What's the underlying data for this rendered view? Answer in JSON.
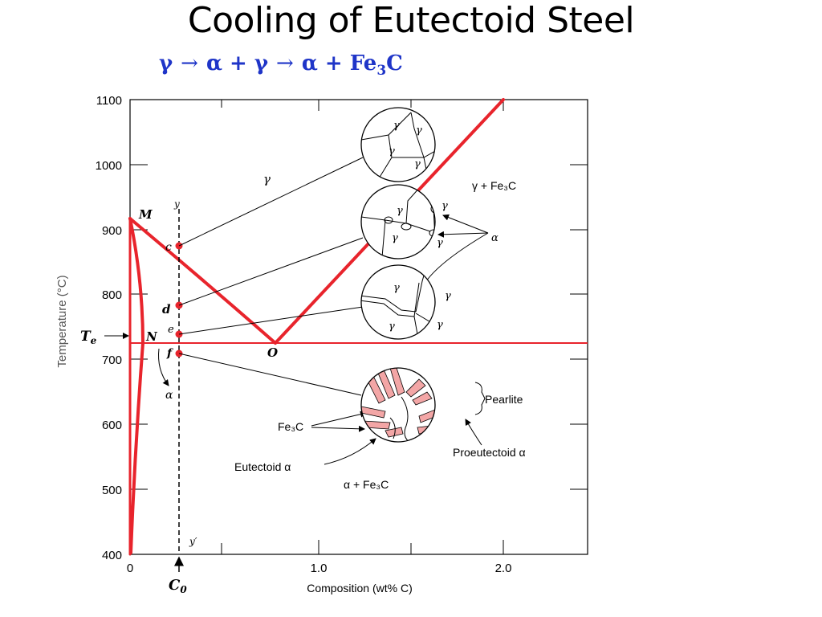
{
  "slide": {
    "title": "Cooling of Eutectoid Steel",
    "reaction": {
      "s1": "γ",
      "arrow1": "→",
      "s2": "α + γ",
      "arrow2": "→",
      "s3_prefix": "α + Fe",
      "s3_sub": "3",
      "s3_suffix": "C"
    },
    "accent_color": "#1f35c8"
  },
  "diagram": {
    "y_axis": {
      "label": "Temperature (°C)",
      "ticks": [
        "1100",
        "1000",
        "900",
        "800",
        "700",
        "600",
        "500",
        "400"
      ]
    },
    "x_axis": {
      "title": "Composition (wt% C)",
      "ticks": [
        "0",
        "1.0",
        "2.0"
      ]
    },
    "point_labels": {
      "M": "M",
      "N": "N",
      "O": "O",
      "Te": "T",
      "Te_sub": "e",
      "c": "c",
      "d": "d",
      "e": "e",
      "f": "f",
      "y": "y",
      "y_prime": "y′",
      "C0": "C",
      "C0_sub": "0"
    },
    "phase_labels": {
      "gamma": "γ",
      "gamma_fe3c": "γ + Fe₃C",
      "alpha_fe3c": "α + Fe₃C",
      "alpha_left": "α",
      "alpha_right": "α",
      "pearlite": "Pearlite",
      "fe3c": "Fe₃C",
      "eutectoid_alpha": "Eutectoid α",
      "proeutectoid_alpha": "Proeutectoid α"
    },
    "micro_labels": {
      "g": "γ"
    },
    "line_color": "#e8242c"
  }
}
